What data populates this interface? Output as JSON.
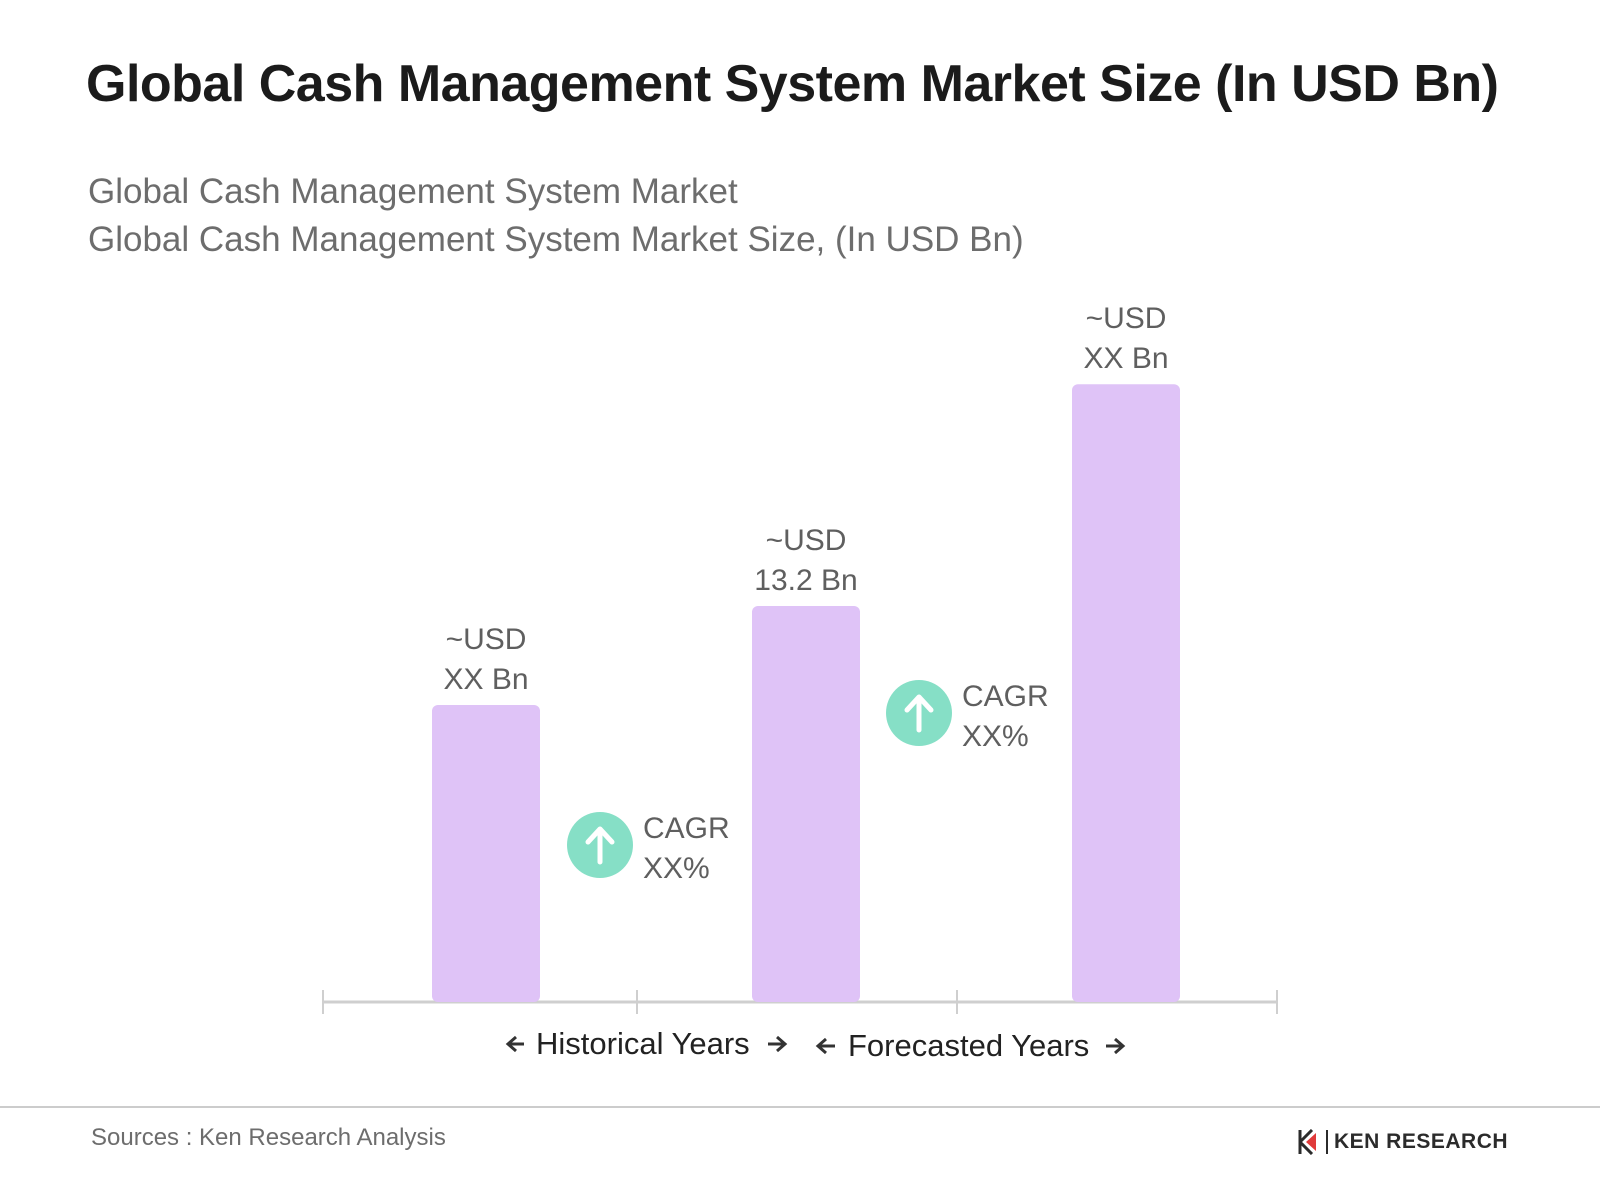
{
  "header": {
    "title": "Global Cash Management System Market Size (In USD Bn)",
    "subtitle_1": "Global Cash Management System Market",
    "subtitle_2": "Global Cash Management System Market Size, (In USD Bn)"
  },
  "chart_data": {
    "type": "bar",
    "title": "Global Cash Management System Market Size (In USD Bn)",
    "subtitle": "Global Cash Management System Market Size, (In USD Bn)",
    "categories": [
      "",
      "",
      ""
    ],
    "values": [
      null,
      13.2,
      null
    ],
    "data_labels": [
      [
        "~USD",
        "XX Bn"
      ],
      [
        "~USD",
        "13.2 Bn"
      ],
      [
        "~USD",
        "XX Bn"
      ]
    ],
    "cagr_annotations": [
      [
        "CAGR",
        "XX%"
      ],
      [
        "CAGR",
        "XX%"
      ]
    ],
    "period_labels": [
      "Historical Years",
      "Forecasted Years"
    ],
    "bar_color": "#dfc3f7",
    "cagr_icon_color": "#86dfc6",
    "grid": false,
    "legend": "none"
  },
  "footer": {
    "source": "Sources : Ken Research Analysis",
    "logo_text": "KEN RESEARCH"
  },
  "icons": {
    "cagr": "arrow-up-circle-icon",
    "period_arrows": "arrow-left-right-icon",
    "logo": "ken-research-logo-icon"
  }
}
